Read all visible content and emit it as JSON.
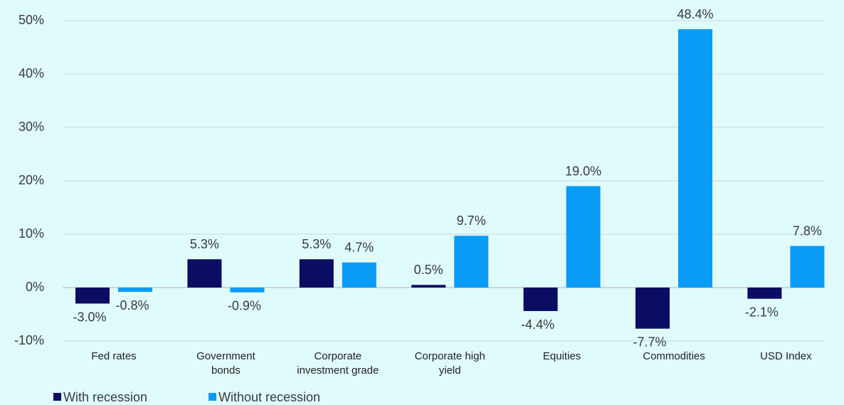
{
  "chart_data": {
    "type": "bar",
    "categories": [
      "Fed rates",
      "Government\nbonds",
      "Corporate\ninvestment grade",
      "Corporate high\nyield",
      "Equities",
      "Commodities",
      "USD Index"
    ],
    "series": [
      {
        "name": "With recession",
        "color": "#0c0c63",
        "values": [
          -3.0,
          5.3,
          5.3,
          0.5,
          -4.4,
          -7.7,
          -2.1
        ],
        "value_labels": [
          "-3.0%",
          "5.3%",
          "5.3%",
          "0.5%",
          "-4.4%",
          "-7.7%",
          "-2.1%"
        ]
      },
      {
        "name": "Without recession",
        "color": "#0a9bf7",
        "values": [
          -0.8,
          -0.9,
          4.7,
          9.7,
          19.0,
          48.4,
          7.8
        ],
        "value_labels": [
          "-0.8%",
          "-0.9%",
          "4.7%",
          "9.7%",
          "19.0%",
          "48.4%",
          "7.8%"
        ]
      }
    ],
    "ylim": [
      -10,
      50
    ],
    "yticks": [
      {
        "value": -10,
        "label": "-10%"
      },
      {
        "value": 0,
        "label": "0%"
      },
      {
        "value": 10,
        "label": "10%"
      },
      {
        "value": 20,
        "label": "20%"
      },
      {
        "value": 30,
        "label": "30%"
      },
      {
        "value": 40,
        "label": "40%"
      },
      {
        "value": 50,
        "label": "50%"
      }
    ],
    "grid": true,
    "legend": "bottom-left"
  }
}
